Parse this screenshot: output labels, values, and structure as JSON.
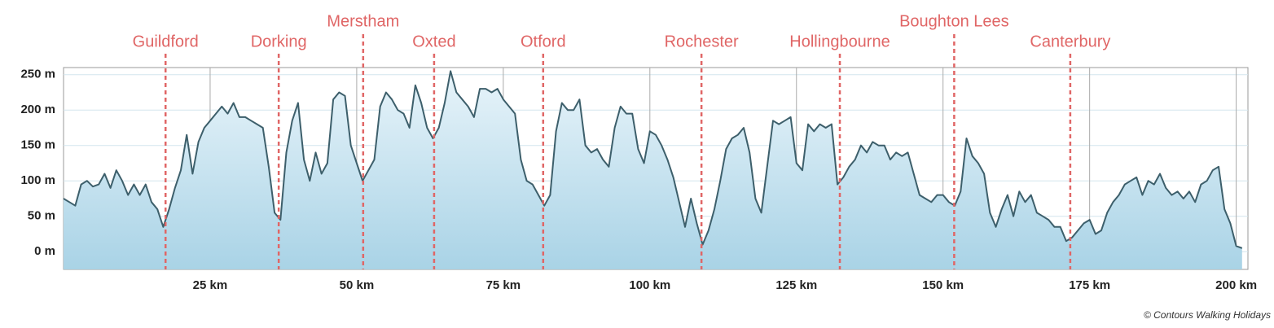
{
  "chart_data": {
    "type": "area",
    "copyright": "© Contours Walking Holidays",
    "x": [
      0,
      1,
      2,
      3,
      4,
      5,
      6,
      7,
      8,
      9,
      10,
      11,
      12,
      13,
      14,
      15,
      16,
      17,
      18,
      19,
      20,
      21,
      22,
      23,
      24,
      25,
      26,
      27,
      28,
      29,
      30,
      31,
      32,
      33,
      34,
      35,
      36,
      37,
      38,
      39,
      40,
      41,
      42,
      43,
      44,
      45,
      46,
      47,
      48,
      49,
      50,
      51,
      52,
      53,
      54,
      55,
      56,
      57,
      58,
      59,
      60,
      61,
      62,
      63,
      64,
      65,
      66,
      67,
      68,
      69,
      70,
      71,
      72,
      73,
      74,
      75,
      76,
      77,
      78,
      79,
      80,
      81,
      82,
      83,
      84,
      85,
      86,
      87,
      88,
      89,
      90,
      91,
      92,
      93,
      94,
      95,
      96,
      97,
      98,
      99,
      100,
      101,
      102,
      103,
      104,
      105,
      106,
      107,
      108,
      109,
      110,
      111,
      112,
      113,
      114,
      115,
      116,
      117,
      118,
      119,
      120,
      121,
      122,
      123,
      124,
      125,
      126,
      127,
      128,
      129,
      130,
      131,
      132,
      133,
      134,
      135,
      136,
      137,
      138,
      139,
      140,
      141,
      142,
      143,
      144,
      145,
      146,
      147,
      148,
      149,
      150,
      151,
      152,
      153,
      154,
      155,
      156,
      157,
      158,
      159,
      160,
      161,
      162,
      163,
      164,
      165,
      166,
      167,
      168,
      169,
      170,
      171,
      172,
      173,
      174,
      175,
      176,
      177,
      178,
      179,
      180,
      181,
      182,
      183,
      184,
      185,
      186,
      187,
      188,
      189,
      190,
      191,
      192,
      193,
      194,
      195,
      196,
      197,
      198,
      199,
      200,
      201
    ],
    "values": [
      75,
      70,
      65,
      95,
      100,
      92,
      95,
      110,
      90,
      115,
      100,
      80,
      95,
      80,
      95,
      70,
      60,
      35,
      60,
      90,
      115,
      165,
      110,
      155,
      175,
      185,
      195,
      205,
      195,
      210,
      190,
      190,
      185,
      180,
      175,
      120,
      55,
      45,
      140,
      185,
      210,
      130,
      100,
      140,
      110,
      125,
      215,
      225,
      220,
      150,
      125,
      100,
      115,
      130,
      205,
      225,
      215,
      200,
      195,
      175,
      235,
      210,
      175,
      160,
      175,
      210,
      255,
      225,
      215,
      205,
      190,
      230,
      230,
      225,
      230,
      215,
      205,
      195,
      130,
      100,
      95,
      80,
      65,
      80,
      170,
      210,
      200,
      200,
      215,
      150,
      140,
      145,
      130,
      120,
      175,
      205,
      195,
      195,
      145,
      125,
      170,
      165,
      150,
      130,
      105,
      70,
      35,
      75,
      40,
      10,
      30,
      60,
      100,
      145,
      160,
      165,
      175,
      140,
      75,
      55,
      120,
      185,
      180,
      185,
      190,
      125,
      115,
      180,
      170,
      180,
      175,
      180,
      95,
      105,
      120,
      130,
      150,
      140,
      155,
      150,
      150,
      130,
      140,
      135,
      140,
      110,
      80,
      75,
      70,
      80,
      80,
      70,
      65,
      85,
      160,
      135,
      125,
      110,
      55,
      35,
      60,
      80,
      50,
      85,
      70,
      80,
      55,
      50,
      45,
      35,
      35,
      15,
      20,
      30,
      40,
      45,
      25,
      30,
      55,
      70,
      80,
      95,
      100,
      105,
      80,
      100,
      95,
      110,
      90,
      80,
      85,
      75,
      85,
      70,
      95,
      100,
      115,
      120,
      60,
      40,
      8,
      5
    ],
    "color": "#3d5f6b",
    "fill": "#bfe0ee",
    "xlim": [
      0,
      202
    ],
    "ylim": [
      -25,
      260
    ],
    "xticks": [
      {
        "value": 25,
        "label": "25 km"
      },
      {
        "value": 50,
        "label": "50 km"
      },
      {
        "value": 75,
        "label": "75 km"
      },
      {
        "value": 100,
        "label": "100 km"
      },
      {
        "value": 125,
        "label": "125 km"
      },
      {
        "value": 150,
        "label": "150 km"
      },
      {
        "value": 175,
        "label": "175 km"
      },
      {
        "value": 200,
        "label": "200 km"
      }
    ],
    "yticks": [
      {
        "value": 0,
        "label": "0 m"
      },
      {
        "value": 50,
        "label": "50 m"
      },
      {
        "value": 100,
        "label": "100 m"
      },
      {
        "value": 150,
        "label": "150 m"
      },
      {
        "value": 200,
        "label": "200 m"
      },
      {
        "value": 250,
        "label": "250 m"
      }
    ],
    "grid": true,
    "towns": [
      {
        "name": "Guildford",
        "km": 17.4
      },
      {
        "name": "Dorking",
        "km": 36.7
      },
      {
        "name": "Merstham",
        "km": 51.1
      },
      {
        "name": "Oxted",
        "km": 63.2
      },
      {
        "name": "Otford",
        "km": 81.8
      },
      {
        "name": "Rochester",
        "km": 108.8
      },
      {
        "name": "Hollingbourne",
        "km": 132.4
      },
      {
        "name": "Boughton Lees",
        "km": 151.9
      },
      {
        "name": "Canterbury",
        "km": 171.7
      }
    ],
    "town_color": "#e06666"
  }
}
